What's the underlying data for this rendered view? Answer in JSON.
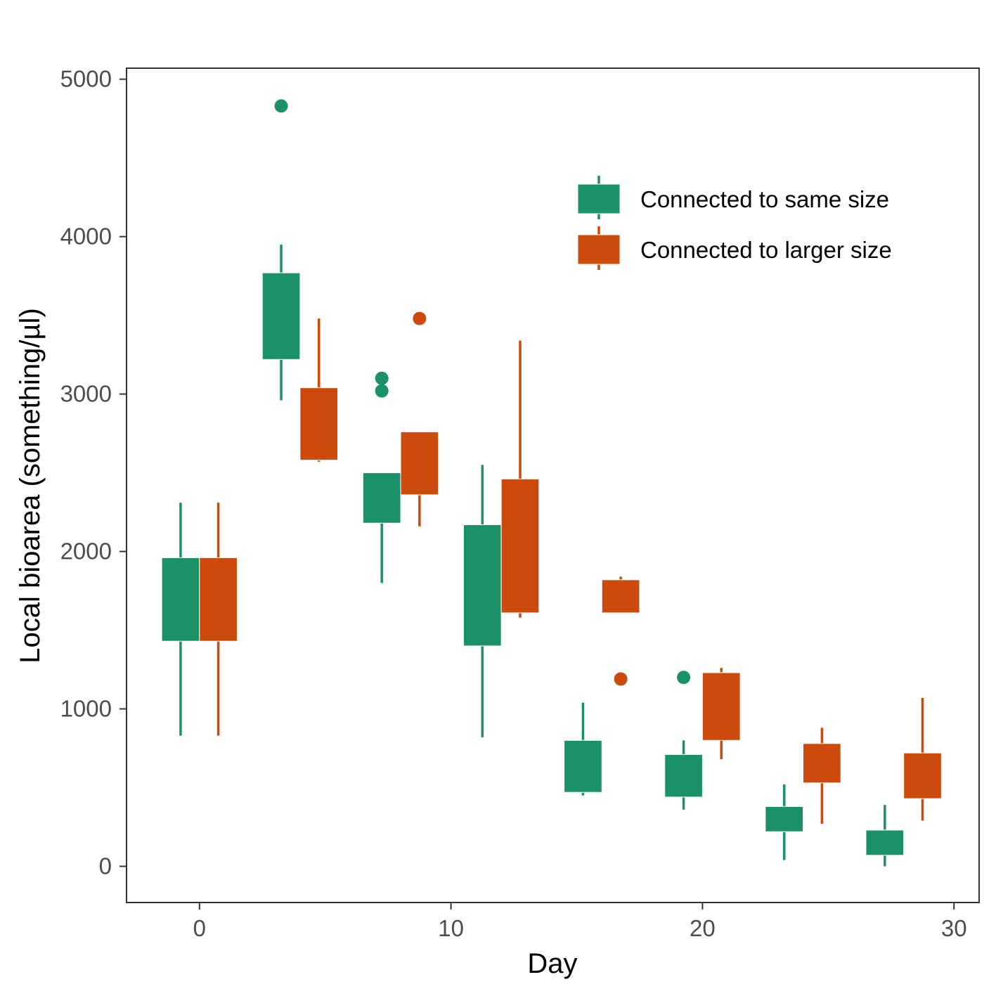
{
  "chart_data": {
    "type": "boxplot",
    "xlabel": "Day",
    "ylabel": "Local bioarea (something/µl)",
    "xlim": [
      -2.9,
      31
    ],
    "ylim": [
      -230,
      5070
    ],
    "x_ticks": [
      0,
      10,
      20,
      30
    ],
    "y_ticks": [
      0,
      1000,
      2000,
      3000,
      4000,
      5000
    ],
    "grid": false,
    "legend": {
      "placement": "top-right"
    },
    "series": [
      {
        "name": "Connected to same size",
        "color": "#1b9168",
        "boxes": [
          {
            "x": -0.75,
            "lower_whisker": 830,
            "q1": 1430,
            "q3": 1960,
            "upper_whisker": 2310,
            "outliers": []
          },
          {
            "x": 3.25,
            "lower_whisker": 2960,
            "q1": 3220,
            "q3": 3770,
            "upper_whisker": 3950,
            "outliers": [
              4830
            ]
          },
          {
            "x": 7.25,
            "lower_whisker": 1800,
            "q1": 2180,
            "q3": 2500,
            "upper_whisker": 2500,
            "outliers": [
              3020,
              3100
            ]
          },
          {
            "x": 11.25,
            "lower_whisker": 820,
            "q1": 1400,
            "q3": 2170,
            "upper_whisker": 2550,
            "outliers": []
          },
          {
            "x": 15.25,
            "lower_whisker": 450,
            "q1": 470,
            "q3": 800,
            "upper_whisker": 1040,
            "outliers": []
          },
          {
            "x": 19.25,
            "lower_whisker": 360,
            "q1": 440,
            "q3": 710,
            "upper_whisker": 800,
            "outliers": [
              1200
            ]
          },
          {
            "x": 23.25,
            "lower_whisker": 40,
            "q1": 220,
            "q3": 380,
            "upper_whisker": 520,
            "outliers": []
          },
          {
            "x": 27.25,
            "lower_whisker": 0,
            "q1": 70,
            "q3": 230,
            "upper_whisker": 390,
            "outliers": []
          }
        ]
      },
      {
        "name": "Connected to larger size",
        "color": "#cc4a0b",
        "boxes": [
          {
            "x": 0.75,
            "lower_whisker": 830,
            "q1": 1430,
            "q3": 1960,
            "upper_whisker": 2310,
            "outliers": []
          },
          {
            "x": 4.75,
            "lower_whisker": 2570,
            "q1": 2580,
            "q3": 3040,
            "upper_whisker": 3480,
            "outliers": []
          },
          {
            "x": 8.75,
            "lower_whisker": 2160,
            "q1": 2360,
            "q3": 2760,
            "upper_whisker": 2760,
            "outliers": [
              3480
            ]
          },
          {
            "x": 12.75,
            "lower_whisker": 1580,
            "q1": 1610,
            "q3": 2460,
            "upper_whisker": 3340,
            "outliers": []
          },
          {
            "x": 16.75,
            "lower_whisker": 1610,
            "q1": 1610,
            "q3": 1820,
            "upper_whisker": 1840,
            "outliers": [
              1190
            ]
          },
          {
            "x": 20.75,
            "lower_whisker": 680,
            "q1": 800,
            "q3": 1230,
            "upper_whisker": 1260,
            "outliers": []
          },
          {
            "x": 24.75,
            "lower_whisker": 270,
            "q1": 530,
            "q3": 780,
            "upper_whisker": 880,
            "outliers": []
          },
          {
            "x": 28.75,
            "lower_whisker": 290,
            "q1": 430,
            "q3": 720,
            "upper_whisker": 1070,
            "outliers": []
          }
        ]
      }
    ]
  }
}
